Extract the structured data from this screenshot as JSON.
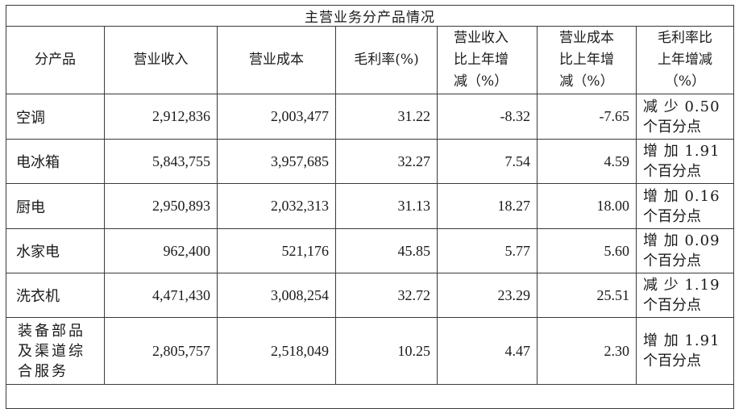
{
  "title": "主营业务分产品情况",
  "headers": {
    "product": "分产品",
    "revenue": "营业收入",
    "cost": "营业成本",
    "gross_margin": "毛利率(%)",
    "revenue_change": [
      "营业收入",
      "比上年增",
      "减（%）"
    ],
    "cost_change": [
      "营业成本",
      "比上年增",
      "减（%）"
    ],
    "margin_change": [
      "毛利率比",
      "上年增减",
      "（%）"
    ]
  },
  "rows": [
    {
      "product": "空调",
      "revenue": "2,912,836",
      "cost": "2,003,477",
      "gross_margin": "31.22",
      "revenue_change": "-8.32",
      "cost_change": "-7.65",
      "margin_change": [
        "减 少 0.50",
        "个百分点"
      ]
    },
    {
      "product": "电冰箱",
      "revenue": "5,843,755",
      "cost": "3,957,685",
      "gross_margin": "32.27",
      "revenue_change": "7.54",
      "cost_change": "4.59",
      "margin_change": [
        "增 加 1.91",
        "个百分点"
      ]
    },
    {
      "product": "厨电",
      "revenue": "2,950,893",
      "cost": "2,032,313",
      "gross_margin": "31.13",
      "revenue_change": "18.27",
      "cost_change": "18.00",
      "margin_change": [
        "增 加 0.16",
        "个百分点"
      ]
    },
    {
      "product": "水家电",
      "revenue": "962,400",
      "cost": "521,176",
      "gross_margin": "45.85",
      "revenue_change": "5.77",
      "cost_change": "5.60",
      "margin_change": [
        "增 加 0.09",
        "个百分点"
      ]
    },
    {
      "product": "洗衣机",
      "revenue": "4,471,430",
      "cost": "3,008,254",
      "gross_margin": "32.72",
      "revenue_change": "23.29",
      "cost_change": "25.51",
      "margin_change": [
        "减 少 1.19",
        "个百分点"
      ]
    },
    {
      "product_lines": [
        "装备部品",
        "及渠道综",
        "合服务"
      ],
      "revenue": "2,805,757",
      "cost": "2,518,049",
      "gross_margin": "10.25",
      "revenue_change": "4.47",
      "cost_change": "2.30",
      "margin_change": [
        "增 加 1.91",
        "个百分点"
      ]
    }
  ]
}
